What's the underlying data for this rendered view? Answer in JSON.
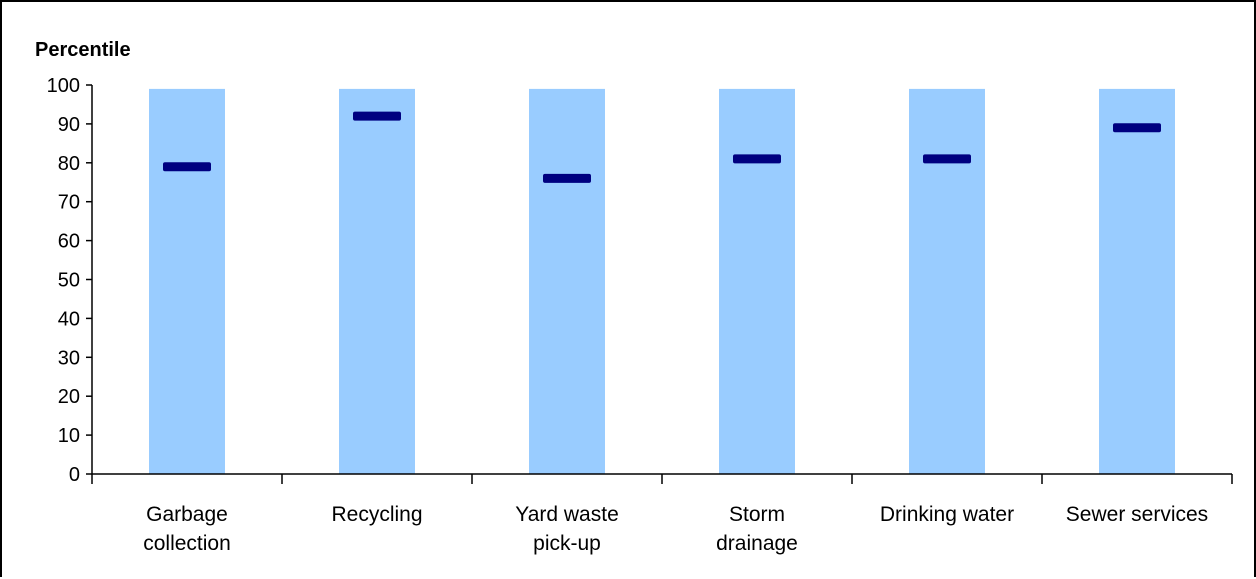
{
  "chart_data": {
    "type": "bar",
    "title": "",
    "xlabel": "",
    "ylabel": "Percentile",
    "ylim": [
      0,
      100
    ],
    "yticks": [
      0,
      10,
      20,
      30,
      40,
      50,
      60,
      70,
      80,
      90,
      100
    ],
    "grid": false,
    "legend": "none",
    "categories": [
      [
        "Garbage",
        "collection"
      ],
      [
        "Recycling"
      ],
      [
        "Yard waste",
        "pick-up"
      ],
      [
        "Storm",
        "drainage"
      ],
      [
        "Drinking water"
      ],
      [
        "Sewer services"
      ]
    ],
    "range_bars": {
      "low": [
        0,
        0,
        0,
        0,
        0,
        0
      ],
      "high": [
        99,
        99,
        99,
        99,
        99,
        99
      ],
      "color": "#99CCFF"
    },
    "markers": {
      "values": [
        79,
        92,
        76,
        81,
        81,
        89
      ],
      "color": "#000080",
      "shape": "dash"
    }
  }
}
